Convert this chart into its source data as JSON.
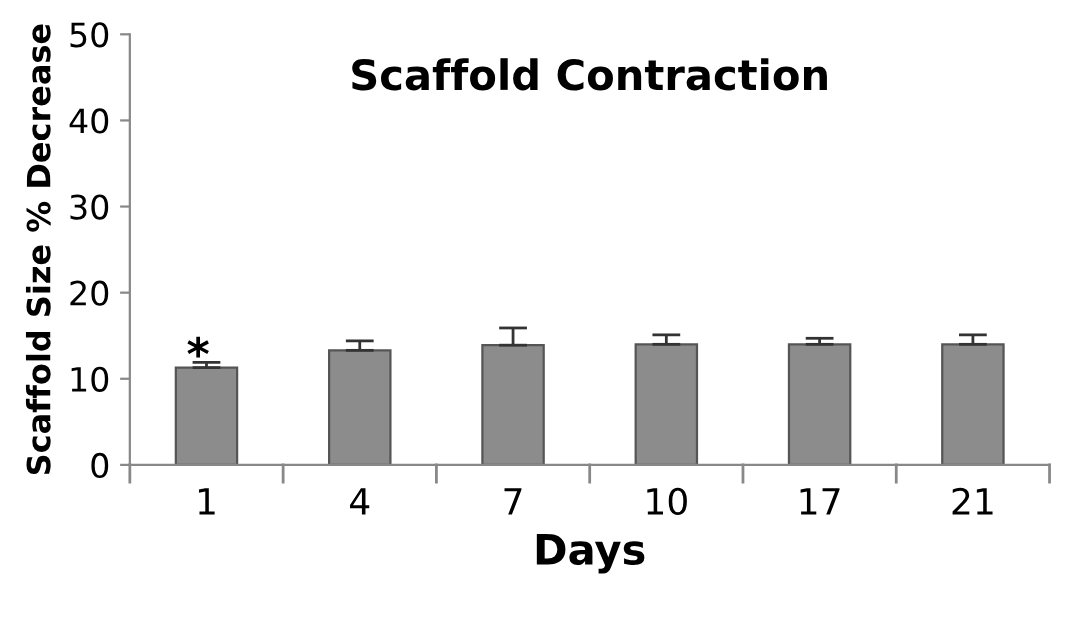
{
  "chart_data": {
    "type": "bar",
    "title": "Scaffold Contraction",
    "xlabel": "Days",
    "ylabel": "Scaffold Size % Decrease",
    "categories": [
      "1",
      "4",
      "7",
      "10",
      "17",
      "21"
    ],
    "values": [
      11.3,
      13.3,
      13.9,
      14.0,
      14.0,
      14.0
    ],
    "errors": [
      [
        11.3,
        11.9
      ],
      [
        13.3,
        14.4
      ],
      [
        13.9,
        15.9
      ],
      [
        14.0,
        15.1
      ],
      [
        14.0,
        14.7
      ],
      [
        14.0,
        15.1
      ]
    ],
    "color": "#8c8c8c",
    "ylim": [
      0,
      50
    ],
    "yticks": [
      0,
      10,
      20,
      30,
      40,
      50
    ],
    "grid": false,
    "legend": false,
    "annotations": [
      {
        "text": "*",
        "x": "1",
        "y": 11.9
      }
    ]
  }
}
